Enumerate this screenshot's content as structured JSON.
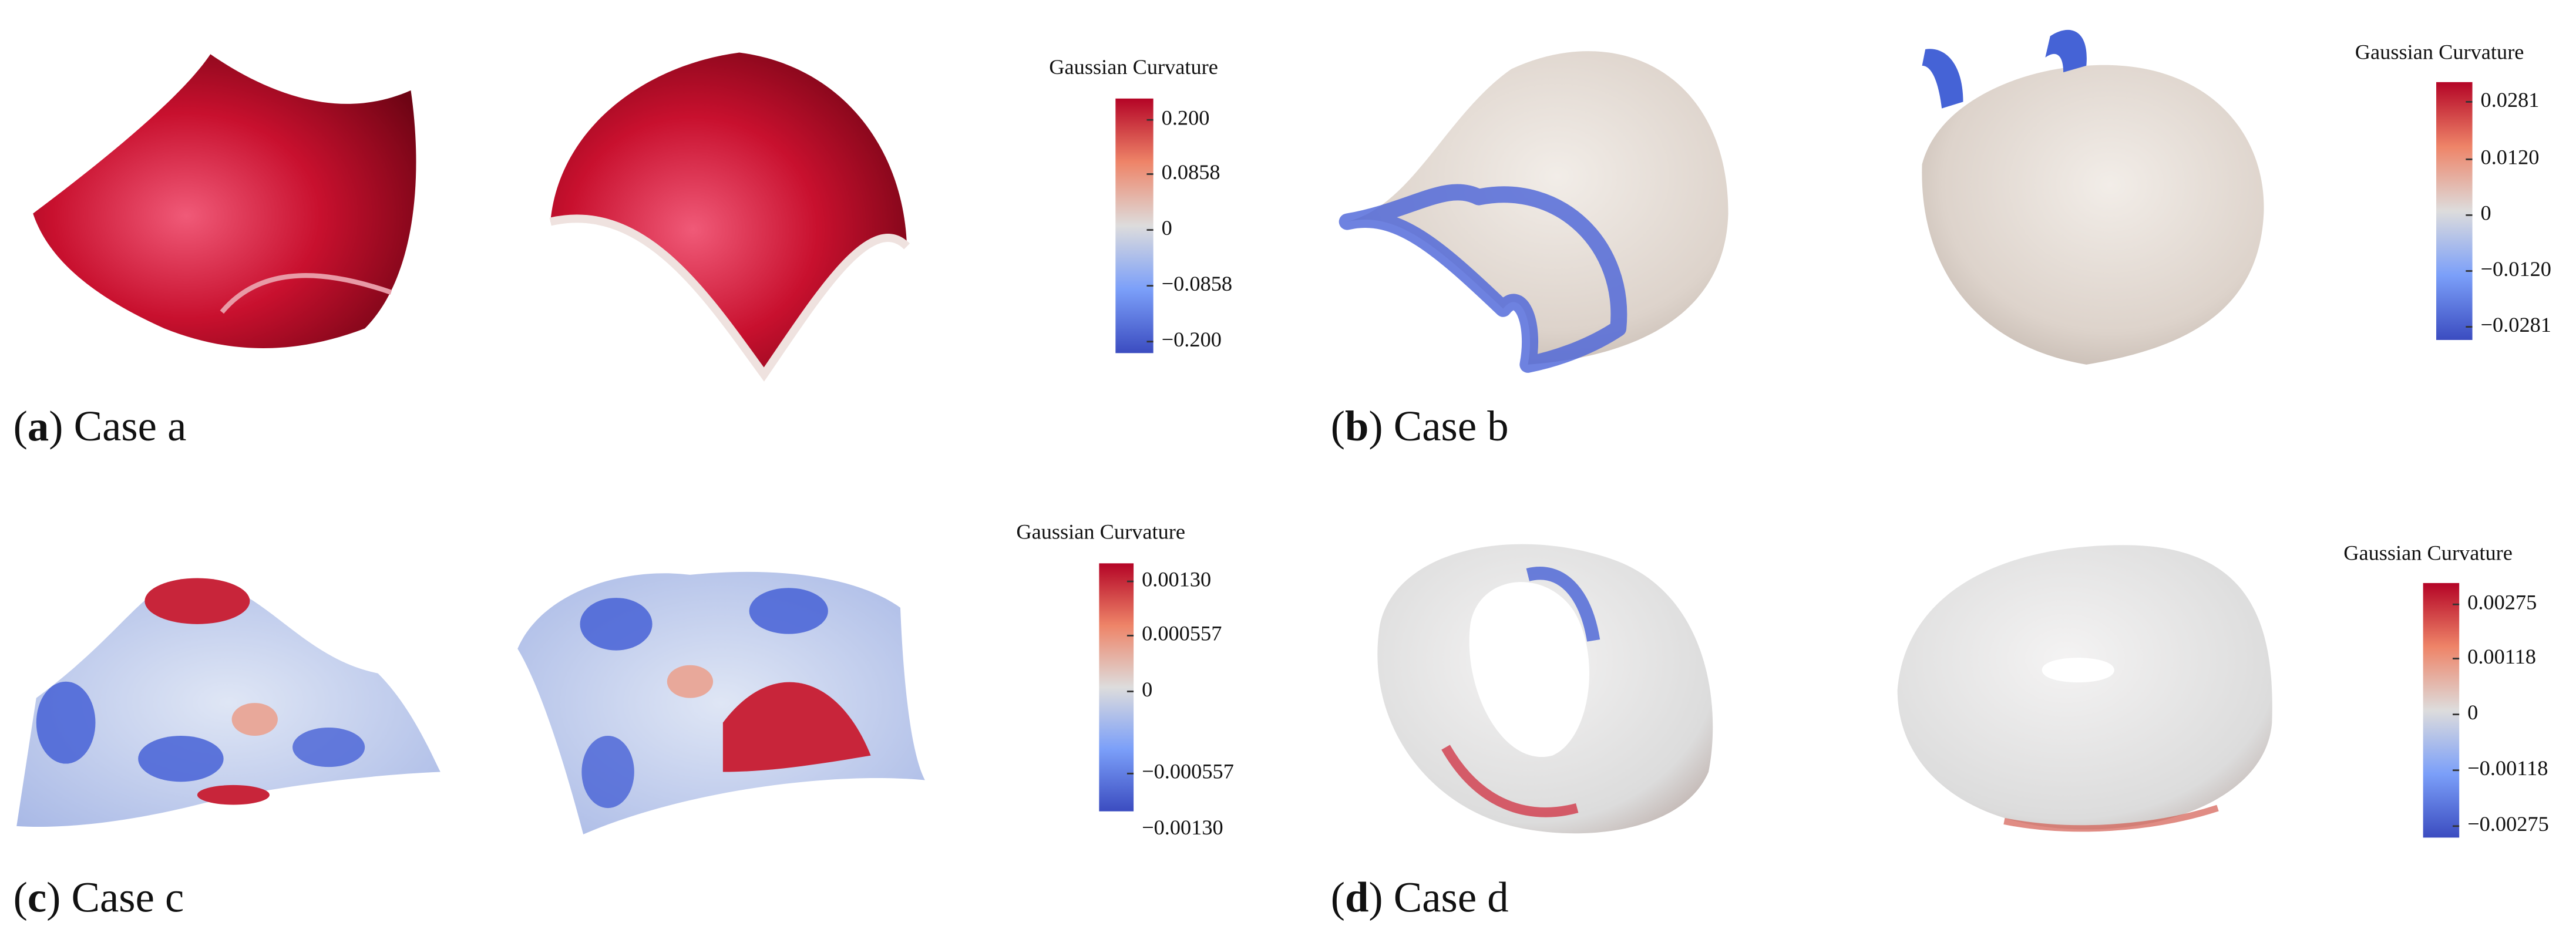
{
  "panels": [
    {
      "caption": {
        "prefix": "(",
        "label": "a",
        "suffix": ") Case a"
      },
      "colorbar": {
        "title": "Gaussian Curvature",
        "ticks": [
          "0.200",
          "0.0858",
          "0",
          "−0.0858",
          "−0.200"
        ]
      }
    },
    {
      "caption": {
        "prefix": "(",
        "label": "b",
        "suffix": ") Case b"
      },
      "colorbar": {
        "title": "Gaussian Curvature",
        "ticks": [
          "0.0281",
          "0.0120",
          "0",
          "−0.0120",
          "−0.0281"
        ]
      }
    },
    {
      "caption": {
        "prefix": "(",
        "label": "c",
        "suffix": ") Case c"
      },
      "colorbar": {
        "title": "Gaussian Curvature",
        "ticks": [
          "0.00130",
          "0.000557",
          "0",
          "−0.000557",
          "−0.00130"
        ]
      }
    },
    {
      "caption": {
        "prefix": "(",
        "label": "d",
        "suffix": ") Case d"
      },
      "colorbar": {
        "title": "Gaussian Curvature",
        "ticks": [
          "0.00275",
          "0.00118",
          "0",
          "−0.00118",
          "−0.00275"
        ]
      }
    }
  ]
}
